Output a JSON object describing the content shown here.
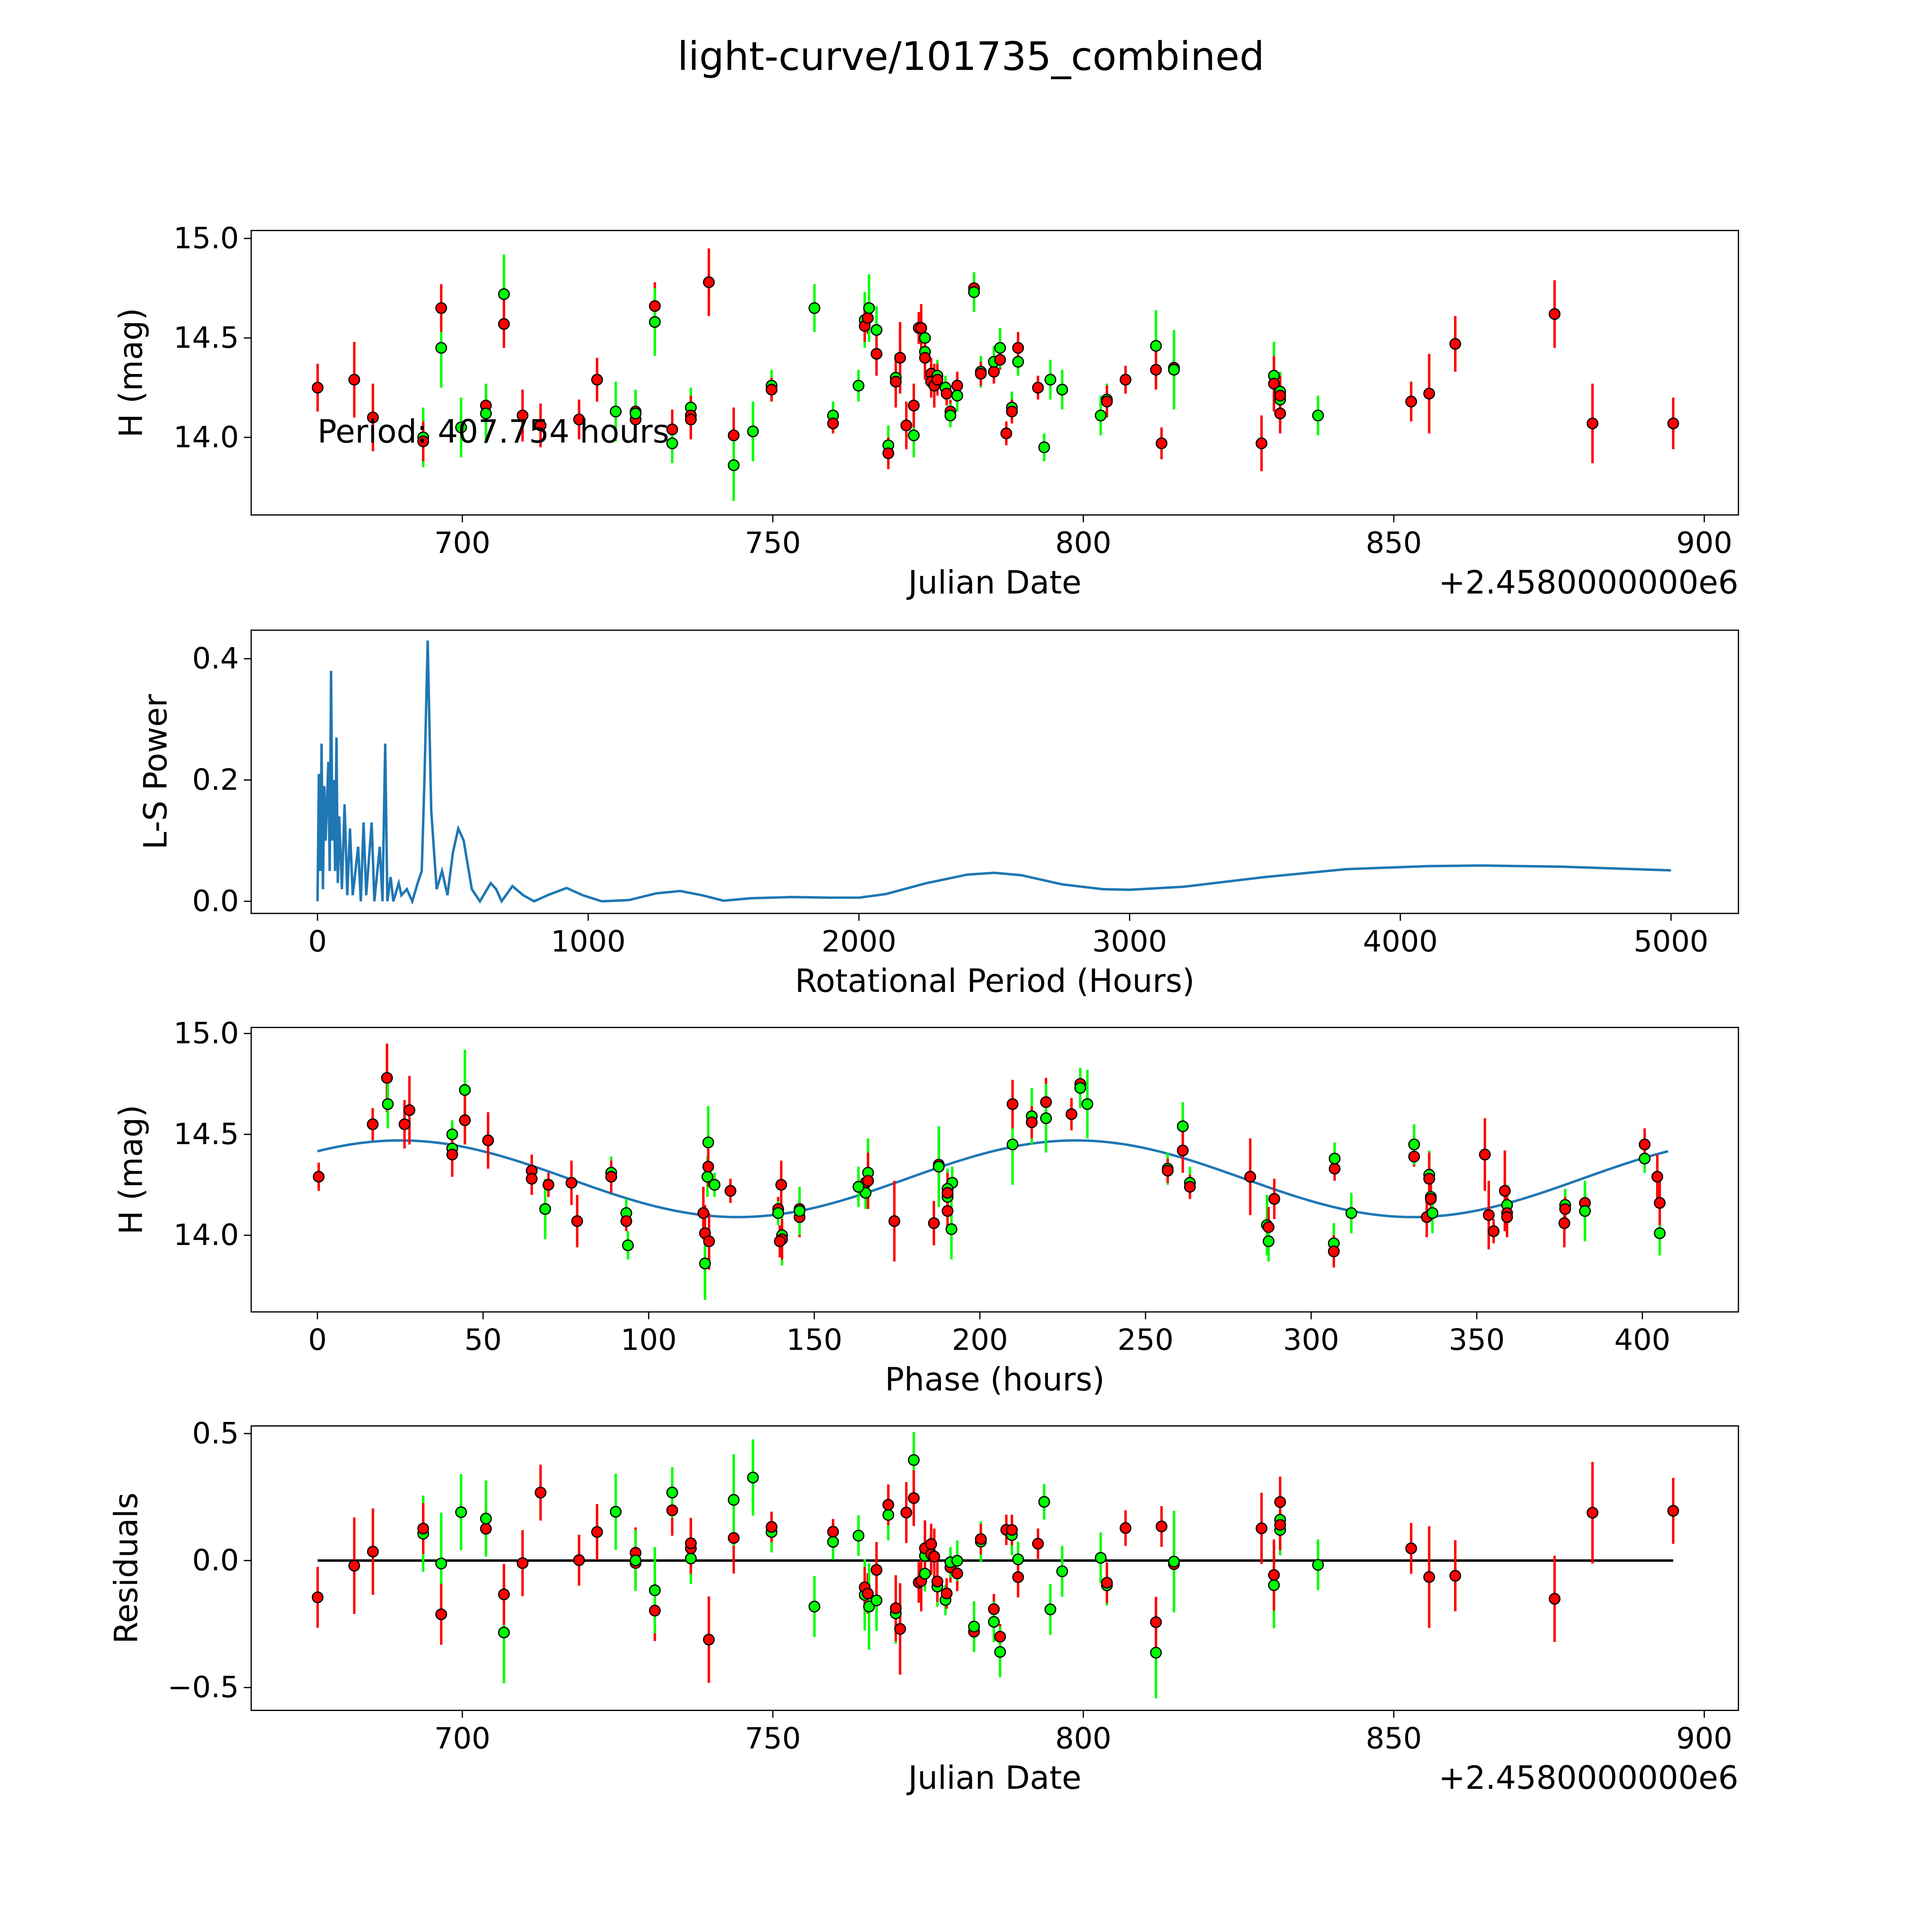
{
  "title": "light-curve/101735_combined",
  "colors": {
    "r": "#ff0000",
    "g": "#00ff00",
    "curve": "#1f77b4",
    "edge": "#000000"
  },
  "chart_data": [
    {
      "type": "scatter",
      "name": "light-curve",
      "xlabel": "Julian Date",
      "ylabel": "H (mag)",
      "offset_text": "+2.4580000000e6",
      "annotation": "Period: 407.754 hours",
      "xlim": [
        666,
        905.5
      ],
      "ylim": [
        13.61,
        15.04
      ],
      "xticks": [
        700,
        750,
        800,
        850,
        900
      ],
      "xticklabels": [
        "700",
        "750",
        "800",
        "850",
        "900"
      ],
      "yticks": [
        14.0,
        14.5,
        15.0
      ],
      "yticklabels": [
        "14.0",
        "14.5",
        "15.0"
      ],
      "points_format": [
        "julian_date_minus_2458000",
        "H_mag",
        "error",
        "filter_color"
      ],
      "points": [
        [
          676.7,
          14.25,
          0.12,
          "r"
        ],
        [
          682.6,
          14.29,
          0.19,
          "r"
        ],
        [
          685.6,
          14.1,
          0.17,
          "r"
        ],
        [
          693.7,
          14.0,
          0.15,
          "g"
        ],
        [
          693.7,
          13.98,
          0.1,
          "r"
        ],
        [
          696.6,
          14.45,
          0.2,
          "g"
        ],
        [
          696.6,
          14.65,
          0.12,
          "r"
        ],
        [
          699.8,
          14.05,
          0.15,
          "g"
        ],
        [
          703.8,
          14.16,
          0.1,
          "r"
        ],
        [
          703.8,
          14.12,
          0.15,
          "g"
        ],
        [
          706.7,
          14.72,
          0.2,
          "g"
        ],
        [
          706.7,
          14.57,
          0.12,
          "r"
        ],
        [
          709.7,
          14.11,
          0.13,
          "r"
        ],
        [
          712.6,
          14.06,
          0.11,
          "r"
        ],
        [
          718.8,
          14.09,
          0.1,
          "r"
        ],
        [
          721.7,
          14.29,
          0.11,
          "r"
        ],
        [
          724.7,
          14.13,
          0.15,
          "g"
        ],
        [
          727.9,
          14.13,
          0.1,
          "r"
        ],
        [
          727.9,
          14.09,
          0.1,
          "r"
        ],
        [
          727.9,
          14.12,
          0.12,
          "g"
        ],
        [
          731.0,
          14.66,
          0.12,
          "r"
        ],
        [
          731.0,
          14.58,
          0.17,
          "g"
        ],
        [
          733.8,
          14.04,
          0.1,
          "r"
        ],
        [
          733.8,
          13.97,
          0.1,
          "g"
        ],
        [
          736.8,
          14.15,
          0.1,
          "g"
        ],
        [
          736.8,
          14.11,
          0.1,
          "r"
        ],
        [
          736.8,
          14.09,
          0.1,
          "r"
        ],
        [
          739.7,
          14.78,
          0.17,
          "r"
        ],
        [
          743.7,
          14.01,
          0.14,
          "r"
        ],
        [
          743.7,
          13.86,
          0.18,
          "g"
        ],
        [
          746.8,
          14.03,
          0.15,
          "g"
        ],
        [
          749.8,
          14.26,
          0.08,
          "g"
        ],
        [
          749.8,
          14.24,
          0.06,
          "r"
        ],
        [
          756.7,
          14.65,
          0.12,
          "g"
        ],
        [
          759.7,
          14.11,
          0.07,
          "g"
        ],
        [
          759.7,
          14.07,
          0.05,
          "r"
        ],
        [
          763.8,
          14.26,
          0.08,
          "g"
        ],
        [
          764.8,
          14.59,
          0.14,
          "g"
        ],
        [
          764.8,
          14.56,
          0.08,
          "r"
        ],
        [
          765.3,
          14.6,
          0.08,
          "r"
        ],
        [
          765.5,
          14.65,
          0.17,
          "g"
        ],
        [
          766.7,
          14.54,
          0.12,
          "g"
        ],
        [
          766.7,
          14.42,
          0.11,
          "r"
        ],
        [
          768.6,
          13.96,
          0.1,
          "g"
        ],
        [
          768.6,
          13.92,
          0.08,
          "r"
        ],
        [
          769.8,
          14.3,
          0.12,
          "g"
        ],
        [
          769.8,
          14.28,
          0.13,
          "r"
        ],
        [
          770.5,
          14.4,
          0.18,
          "r"
        ],
        [
          771.5,
          14.06,
          0.12,
          "r"
        ],
        [
          772.7,
          14.01,
          0.11,
          "g"
        ],
        [
          772.7,
          14.16,
          0.11,
          "r"
        ],
        [
          773.5,
          14.55,
          0.08,
          "r"
        ],
        [
          773.9,
          14.55,
          0.12,
          "r"
        ],
        [
          774.5,
          14.5,
          0.07,
          "g"
        ],
        [
          774.5,
          14.43,
          0.08,
          "g"
        ],
        [
          774.5,
          14.4,
          0.11,
          "r"
        ],
        [
          775.5,
          14.32,
          0.08,
          "r"
        ],
        [
          775.5,
          14.28,
          0.08,
          "r"
        ],
        [
          776.0,
          14.26,
          0.11,
          "r"
        ],
        [
          776.5,
          14.31,
          0.08,
          "g"
        ],
        [
          776.5,
          14.29,
          0.08,
          "r"
        ],
        [
          777.8,
          14.25,
          0.06,
          "g"
        ],
        [
          778.0,
          14.22,
          0.06,
          "r"
        ],
        [
          778.6,
          14.13,
          0.06,
          "r"
        ],
        [
          778.6,
          14.11,
          0.06,
          "g"
        ],
        [
          779.7,
          14.26,
          0.07,
          "r"
        ],
        [
          779.7,
          14.21,
          0.08,
          "g"
        ],
        [
          782.4,
          14.75,
          0.06,
          "r"
        ],
        [
          782.4,
          14.73,
          0.1,
          "g"
        ],
        [
          783.5,
          14.33,
          0.08,
          "g"
        ],
        [
          783.5,
          14.32,
          0.06,
          "r"
        ],
        [
          785.6,
          14.33,
          0.06,
          "r"
        ],
        [
          785.6,
          14.38,
          0.08,
          "g"
        ],
        [
          786.6,
          14.39,
          0.05,
          "r"
        ],
        [
          786.6,
          14.45,
          0.1,
          "g"
        ],
        [
          787.6,
          14.02,
          0.06,
          "r"
        ],
        [
          788.5,
          14.15,
          0.08,
          "g"
        ],
        [
          788.5,
          14.13,
          0.06,
          "r"
        ],
        [
          789.5,
          14.38,
          0.07,
          "g"
        ],
        [
          789.5,
          14.45,
          0.08,
          "r"
        ],
        [
          792.7,
          14.25,
          0.06,
          "r"
        ],
        [
          793.7,
          13.95,
          0.07,
          "g"
        ],
        [
          794.7,
          14.29,
          0.1,
          "g"
        ],
        [
          796.6,
          14.24,
          0.1,
          "g"
        ],
        [
          802.8,
          14.11,
          0.1,
          "g"
        ],
        [
          803.8,
          14.19,
          0.08,
          "g"
        ],
        [
          803.8,
          14.18,
          0.08,
          "r"
        ],
        [
          806.8,
          14.29,
          0.07,
          "r"
        ],
        [
          811.7,
          14.46,
          0.18,
          "g"
        ],
        [
          811.7,
          14.34,
          0.1,
          "r"
        ],
        [
          812.6,
          13.97,
          0.08,
          "r"
        ],
        [
          814.6,
          14.35,
          0.17,
          "r"
        ],
        [
          814.6,
          14.34,
          0.2,
          "g"
        ],
        [
          828.7,
          13.97,
          0.14,
          "r"
        ],
        [
          830.7,
          14.31,
          0.17,
          "g"
        ],
        [
          830.7,
          14.27,
          0.14,
          "r"
        ],
        [
          831.7,
          14.23,
          0.1,
          "g"
        ],
        [
          831.7,
          14.19,
          0.1,
          "g"
        ],
        [
          831.7,
          14.21,
          0.1,
          "r"
        ],
        [
          831.7,
          14.12,
          0.1,
          "r"
        ],
        [
          837.8,
          14.11,
          0.1,
          "g"
        ],
        [
          852.8,
          14.18,
          0.1,
          "r"
        ],
        [
          855.7,
          14.22,
          0.2,
          "r"
        ],
        [
          859.9,
          14.47,
          0.14,
          "r"
        ],
        [
          875.9,
          14.62,
          0.17,
          "r"
        ],
        [
          882.0,
          14.07,
          0.2,
          "r"
        ],
        [
          895.0,
          14.07,
          0.13,
          "r"
        ]
      ]
    },
    {
      "type": "line",
      "name": "periodogram",
      "xlabel": "Rotational Period (Hours)",
      "ylabel": "L-S Power",
      "xlim": [
        -245,
        5249
      ],
      "ylim": [
        -0.02,
        0.447
      ],
      "xticks": [
        0,
        1000,
        2000,
        3000,
        4000,
        5000
      ],
      "xticklabels": [
        "0",
        "1000",
        "2000",
        "3000",
        "4000",
        "5000"
      ],
      "yticks": [
        0.0,
        0.2,
        0.4
      ],
      "yticklabels": [
        "0.0",
        "0.2",
        "0.4"
      ],
      "points": [
        [
          0,
          0
        ],
        [
          5,
          0.21
        ],
        [
          10,
          0.05
        ],
        [
          15,
          0.26
        ],
        [
          20,
          0.02
        ],
        [
          25,
          0.19
        ],
        [
          30,
          0.1
        ],
        [
          40,
          0.23
        ],
        [
          45,
          0.05
        ],
        [
          50,
          0.38
        ],
        [
          55,
          0.1
        ],
        [
          60,
          0.2
        ],
        [
          65,
          0.05
        ],
        [
          70,
          0.27
        ],
        [
          75,
          0.03
        ],
        [
          80,
          0.14
        ],
        [
          90,
          0.02
        ],
        [
          100,
          0.16
        ],
        [
          110,
          0.01
        ],
        [
          120,
          0.12
        ],
        [
          130,
          0.01
        ],
        [
          150,
          0.09
        ],
        [
          160,
          0.0
        ],
        [
          170,
          0.13
        ],
        [
          180,
          0.01
        ],
        [
          200,
          0.13
        ],
        [
          210,
          0.0
        ],
        [
          230,
          0.09
        ],
        [
          240,
          0.0
        ],
        [
          250,
          0.26
        ],
        [
          258,
          0.0
        ],
        [
          270,
          0.04
        ],
        [
          280,
          0.0
        ],
        [
          300,
          0.03
        ],
        [
          310,
          0.01
        ],
        [
          330,
          0.02
        ],
        [
          350,
          0.0
        ],
        [
          370,
          0.03
        ],
        [
          385,
          0.05
        ],
        [
          395,
          0.2
        ],
        [
          407,
          0.43
        ],
        [
          420,
          0.15
        ],
        [
          440,
          0.02
        ],
        [
          460,
          0.05
        ],
        [
          480,
          0.01
        ],
        [
          500,
          0.08
        ],
        [
          520,
          0.12
        ],
        [
          540,
          0.1
        ],
        [
          570,
          0.02
        ],
        [
          600,
          0.0
        ],
        [
          640,
          0.03
        ],
        [
          660,
          0.02
        ],
        [
          680,
          0.0
        ],
        [
          720,
          0.025
        ],
        [
          760,
          0.01
        ],
        [
          800,
          0.0
        ],
        [
          850,
          0.01
        ],
        [
          920,
          0.022
        ],
        [
          980,
          0.01
        ],
        [
          1050,
          0.0
        ],
        [
          1150,
          0.002
        ],
        [
          1250,
          0.013
        ],
        [
          1340,
          0.017
        ],
        [
          1420,
          0.01
        ],
        [
          1500,
          0.001
        ],
        [
          1600,
          0.005
        ],
        [
          1750,
          0.007
        ],
        [
          1900,
          0.006
        ],
        [
          2000,
          0.006
        ],
        [
          2100,
          0.012
        ],
        [
          2250,
          0.03
        ],
        [
          2400,
          0.044
        ],
        [
          2500,
          0.047
        ],
        [
          2600,
          0.043
        ],
        [
          2750,
          0.028
        ],
        [
          2900,
          0.02
        ],
        [
          3000,
          0.019
        ],
        [
          3200,
          0.024
        ],
        [
          3500,
          0.04
        ],
        [
          3800,
          0.053
        ],
        [
          4100,
          0.058
        ],
        [
          4300,
          0.059
        ],
        [
          4600,
          0.057
        ],
        [
          5000,
          0.051
        ]
      ]
    },
    {
      "type": "scatter",
      "name": "phased-curve",
      "xlabel": "Phase (hours)",
      "ylabel": "H (mag)",
      "period_hours": 407.754,
      "xlim": [
        -20,
        429
      ],
      "ylim": [
        13.62,
        15.03
      ],
      "xticks": [
        0,
        50,
        100,
        150,
        200,
        250,
        300,
        350,
        400
      ],
      "xticklabels": [
        "0",
        "50",
        "100",
        "150",
        "200",
        "250",
        "300",
        "350",
        "400"
      ],
      "yticks": [
        14.0,
        14.5,
        15.0
      ],
      "yticklabels": [
        "14.0",
        "14.5",
        "15.0"
      ]
    },
    {
      "type": "scatter",
      "name": "residuals",
      "xlabel": "Julian Date",
      "ylabel": "Residuals",
      "offset_text": "+2.4580000000e6",
      "xlim": [
        666,
        905.5
      ],
      "ylim": [
        -0.59,
        0.53
      ],
      "xticks": [
        700,
        750,
        800,
        850,
        900
      ],
      "xticklabels": [
        "700",
        "750",
        "800",
        "850",
        "900"
      ],
      "yticks": [
        -0.5,
        0.0,
        0.5
      ],
      "yticklabels": [
        "−0.5",
        "0.0",
        "0.5"
      ]
    }
  ]
}
